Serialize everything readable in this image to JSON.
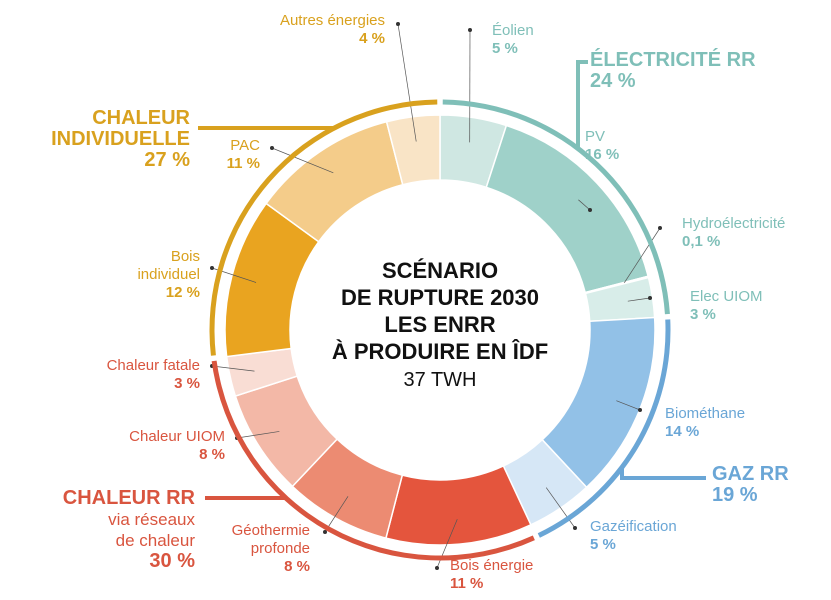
{
  "chart_data": {
    "type": "pie",
    "donut": true,
    "title_lines": [
      "SCÉNARIO",
      "DE RUPTURE 2030",
      "LES ENRR",
      "À PRODUIRE EN ÎDF"
    ],
    "subtitle": "37 TWH",
    "groups": [
      {
        "name": "ÉLECTRICITÉ RR",
        "value": 24,
        "value_label": "24 %",
        "color": "#7fbfb8",
        "segments": [
          {
            "name": "Éolien",
            "value": 5,
            "value_label": "5 %",
            "color": "#cfe7e2"
          },
          {
            "name": "PV",
            "value": 16,
            "value_label": "16 %",
            "color": "#9fd1c9"
          },
          {
            "name": "Hydroélectricité",
            "value": 0.1,
            "value_label": "0,1 %",
            "color": "#b6dcd5"
          },
          {
            "name": "Elec UIOM",
            "value": 3,
            "value_label": "3 %",
            "color": "#d8ede9"
          }
        ]
      },
      {
        "name": "GAZ RR",
        "value": 19,
        "value_label": "19 %",
        "color": "#6aa6d6",
        "segments": [
          {
            "name": "Biométhane",
            "value": 14,
            "value_label": "14 %",
            "color": "#92c1e7"
          },
          {
            "name": "Gazéification",
            "value": 5,
            "value_label": "5 %",
            "color": "#d6e7f6"
          }
        ]
      },
      {
        "name": "CHALEUR RR",
        "subtitle": "via réseaux de chaleur",
        "value": 30,
        "value_label": "30 %",
        "color": "#d9553f",
        "segments": [
          {
            "name": "Bois énergie",
            "value": 11,
            "value_label": "11 %",
            "color": "#e4553d"
          },
          {
            "name": "Géothermie profonde",
            "value": 8,
            "value_label": "8 %",
            "color": "#ec8b72"
          },
          {
            "name": "Chaleur UIOM",
            "value": 8,
            "value_label": "8 %",
            "color": "#f3b8a7"
          },
          {
            "name": "Chaleur fatale",
            "value": 3,
            "value_label": "3 %",
            "color": "#f9ddd4"
          }
        ]
      },
      {
        "name": "CHALEUR INDIVIDUELLE",
        "value": 27,
        "value_label": "27 %",
        "color": "#d9a11e",
        "segments": [
          {
            "name": "Bois individuel",
            "value": 12,
            "value_label": "12 %",
            "color": "#e9a420"
          },
          {
            "name": "PAC",
            "value": 11,
            "value_label": "11 %",
            "color": "#f4cc8a"
          },
          {
            "name": "Autres énergies",
            "value": 4,
            "value_label": "4 %",
            "color": "#f9e4c6"
          }
        ]
      }
    ]
  }
}
